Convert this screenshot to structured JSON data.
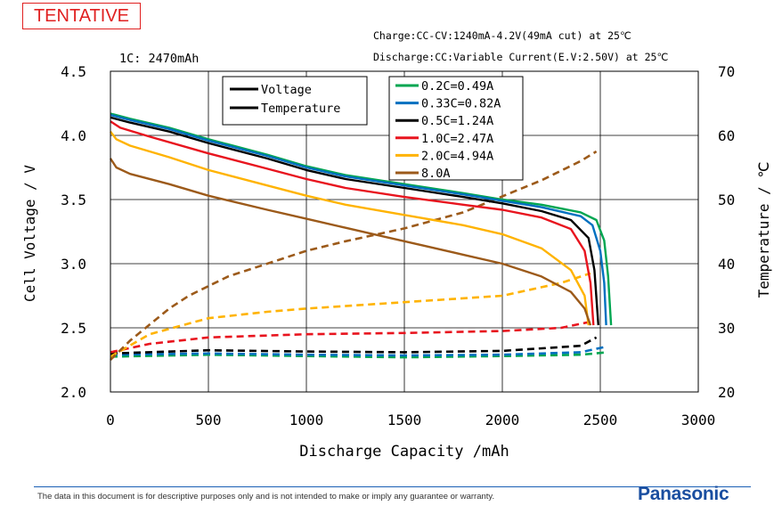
{
  "stamp": "TENTATIVE",
  "conditions": {
    "charge": "Charge:CC-CV:1240mA-4.2V(49mA cut) at 25℃",
    "discharge": "Discharge:CC:Variable Current(E.V:2.50V) at 25℃"
  },
  "footer": {
    "disclaimer": "The data in this document is for descriptive purposes only and is not intended to make or imply any guarantee or warranty.",
    "brand": "Panasonic"
  },
  "chart_data": {
    "type": "line",
    "annotation": "1C: 2470mAh",
    "xlabel": "Discharge Capacity /mAh",
    "ylabel": "Cell Voltage / V",
    "y2label": "Temperature / ℃",
    "xlim": [
      0,
      3000
    ],
    "ylim": [
      2.0,
      4.5
    ],
    "y2lim": [
      20,
      70
    ],
    "x_ticks": [
      "0",
      "500",
      "1000",
      "1500",
      "2000",
      "2500",
      "3000"
    ],
    "y_ticks": [
      "2.0",
      "2.5",
      "3.0",
      "3.5",
      "4.0",
      "4.5"
    ],
    "y2_ticks": [
      "20",
      "30",
      "40",
      "50",
      "60",
      "70"
    ],
    "grid": true,
    "line_style_legend": [
      {
        "label": "Voltage",
        "style": "solid"
      },
      {
        "label": "Temperature",
        "style": "dashed"
      }
    ],
    "series": [
      {
        "name": "0.2C=0.49A",
        "color": "#00a651",
        "voltage": [
          [
            0,
            4.17
          ],
          [
            100,
            4.13
          ],
          [
            300,
            4.06
          ],
          [
            500,
            3.97
          ],
          [
            800,
            3.85
          ],
          [
            1000,
            3.76
          ],
          [
            1200,
            3.69
          ],
          [
            1500,
            3.62
          ],
          [
            1800,
            3.55
          ],
          [
            2000,
            3.5
          ],
          [
            2200,
            3.46
          ],
          [
            2400,
            3.4
          ],
          [
            2480,
            3.34
          ],
          [
            2520,
            3.18
          ],
          [
            2540,
            2.9
          ],
          [
            2555,
            2.52
          ]
        ],
        "temperature": [
          [
            0,
            25.5
          ],
          [
            500,
            25.8
          ],
          [
            1000,
            25.6
          ],
          [
            1500,
            25.4
          ],
          [
            2000,
            25.6
          ],
          [
            2400,
            25.8
          ],
          [
            2540,
            26.2
          ]
        ]
      },
      {
        "name": "0.33C=0.82A",
        "color": "#0070c0",
        "voltage": [
          [
            0,
            4.16
          ],
          [
            100,
            4.12
          ],
          [
            300,
            4.05
          ],
          [
            500,
            3.96
          ],
          [
            800,
            3.84
          ],
          [
            1000,
            3.75
          ],
          [
            1200,
            3.68
          ],
          [
            1500,
            3.61
          ],
          [
            1800,
            3.54
          ],
          [
            2000,
            3.49
          ],
          [
            2200,
            3.44
          ],
          [
            2400,
            3.37
          ],
          [
            2460,
            3.3
          ],
          [
            2500,
            3.1
          ],
          [
            2520,
            2.85
          ],
          [
            2530,
            2.52
          ]
        ],
        "temperature": [
          [
            0,
            25.8
          ],
          [
            500,
            26.0
          ],
          [
            1000,
            25.8
          ],
          [
            1500,
            25.7
          ],
          [
            2000,
            25.8
          ],
          [
            2400,
            26.2
          ],
          [
            2520,
            27.0
          ]
        ]
      },
      {
        "name": "0.5C=1.24A",
        "color": "#000000",
        "voltage": [
          [
            0,
            4.14
          ],
          [
            100,
            4.1
          ],
          [
            300,
            4.03
          ],
          [
            500,
            3.94
          ],
          [
            800,
            3.82
          ],
          [
            1000,
            3.73
          ],
          [
            1200,
            3.66
          ],
          [
            1500,
            3.59
          ],
          [
            1800,
            3.52
          ],
          [
            2000,
            3.47
          ],
          [
            2200,
            3.41
          ],
          [
            2350,
            3.34
          ],
          [
            2440,
            3.2
          ],
          [
            2470,
            2.95
          ],
          [
            2490,
            2.52
          ]
        ],
        "temperature": [
          [
            0,
            26.0
          ],
          [
            500,
            26.5
          ],
          [
            1000,
            26.3
          ],
          [
            1500,
            26.2
          ],
          [
            2000,
            26.4
          ],
          [
            2400,
            27.2
          ],
          [
            2480,
            28.5
          ]
        ]
      },
      {
        "name": "1.0C=2.47A",
        "color": "#e8141e",
        "voltage": [
          [
            0,
            4.11
          ],
          [
            50,
            4.06
          ],
          [
            200,
            3.99
          ],
          [
            500,
            3.86
          ],
          [
            800,
            3.74
          ],
          [
            1000,
            3.66
          ],
          [
            1200,
            3.59
          ],
          [
            1500,
            3.52
          ],
          [
            1800,
            3.46
          ],
          [
            2000,
            3.42
          ],
          [
            2200,
            3.36
          ],
          [
            2350,
            3.27
          ],
          [
            2420,
            3.1
          ],
          [
            2450,
            2.85
          ],
          [
            2465,
            2.52
          ]
        ],
        "temperature": [
          [
            0,
            26.2
          ],
          [
            200,
            27.5
          ],
          [
            500,
            28.5
          ],
          [
            1000,
            29.0
          ],
          [
            1500,
            29.2
          ],
          [
            2000,
            29.5
          ],
          [
            2300,
            30.0
          ],
          [
            2460,
            31.0
          ]
        ]
      },
      {
        "name": "2.0C=4.94A",
        "color": "#ffb300",
        "voltage": [
          [
            0,
            4.03
          ],
          [
            30,
            3.97
          ],
          [
            100,
            3.92
          ],
          [
            300,
            3.83
          ],
          [
            500,
            3.73
          ],
          [
            800,
            3.61
          ],
          [
            1000,
            3.53
          ],
          [
            1200,
            3.46
          ],
          [
            1500,
            3.38
          ],
          [
            1800,
            3.3
          ],
          [
            2000,
            3.23
          ],
          [
            2200,
            3.12
          ],
          [
            2350,
            2.95
          ],
          [
            2420,
            2.75
          ],
          [
            2440,
            2.52
          ]
        ],
        "temperature": [
          [
            0,
            25.5
          ],
          [
            200,
            29.0
          ],
          [
            500,
            31.5
          ],
          [
            800,
            32.5
          ],
          [
            1000,
            33.0
          ],
          [
            1500,
            34.0
          ],
          [
            2000,
            35.0
          ],
          [
            2300,
            37.0
          ],
          [
            2450,
            38.5
          ]
        ]
      },
      {
        "name": "8.0A",
        "color": "#9c5a1a",
        "voltage": [
          [
            0,
            3.82
          ],
          [
            30,
            3.75
          ],
          [
            100,
            3.7
          ],
          [
            300,
            3.62
          ],
          [
            500,
            3.53
          ],
          [
            800,
            3.42
          ],
          [
            1000,
            3.35
          ],
          [
            1200,
            3.28
          ],
          [
            1400,
            3.21
          ],
          [
            1600,
            3.14
          ],
          [
            1800,
            3.07
          ],
          [
            2000,
            3.0
          ],
          [
            2200,
            2.9
          ],
          [
            2350,
            2.78
          ],
          [
            2420,
            2.65
          ],
          [
            2450,
            2.52
          ]
        ],
        "temperature": [
          [
            0,
            25.0
          ],
          [
            100,
            28.0
          ],
          [
            200,
            30.5
          ],
          [
            300,
            33.0
          ],
          [
            400,
            35.0
          ],
          [
            600,
            38.0
          ],
          [
            800,
            40.0
          ],
          [
            1000,
            42.0
          ],
          [
            1200,
            43.5
          ],
          [
            1500,
            45.5
          ],
          [
            1800,
            48.0
          ],
          [
            2000,
            50.5
          ],
          [
            2200,
            53.0
          ],
          [
            2400,
            56.0
          ],
          [
            2480,
            57.5
          ]
        ]
      }
    ]
  }
}
